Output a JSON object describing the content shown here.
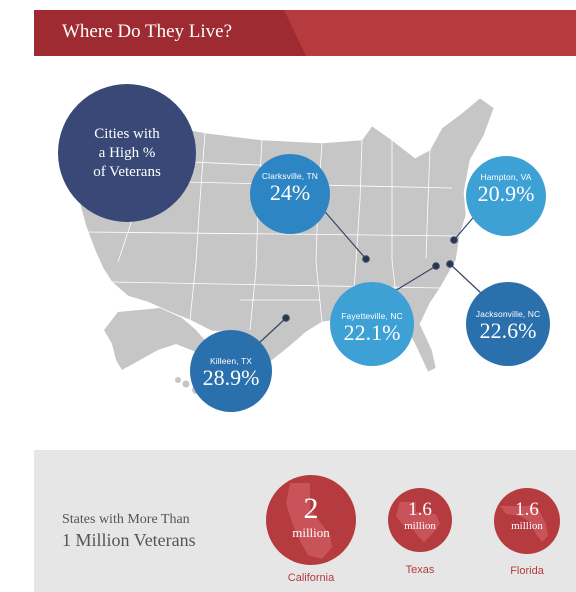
{
  "header": {
    "title": "Where Do They Live?"
  },
  "map": {
    "cities_label": {
      "line1": "Cities with",
      "line2": "a High %",
      "line3": "of Veterans"
    },
    "cities": [
      {
        "name": "Clarksville, TN",
        "percent": "24%"
      },
      {
        "name": "Hampton, VA",
        "percent": "20.9%"
      },
      {
        "name": "Fayetteville, NC",
        "percent": "22.1%"
      },
      {
        "name": "Jacksonville, NC",
        "percent": "22.6%"
      },
      {
        "name": "Killeen, TX",
        "percent": "28.9%"
      }
    ]
  },
  "states_section": {
    "label_line1": "States with More Than",
    "label_line2": "1 Million Veterans",
    "states": [
      {
        "name": "California",
        "value": "2",
        "unit": "million"
      },
      {
        "name": "Texas",
        "value": "1.6",
        "unit": "million"
      },
      {
        "name": "Florida",
        "value": "1.6",
        "unit": "million"
      }
    ]
  },
  "colors": {
    "header_dark": "#9e2b32",
    "header_light": "#b53b3f",
    "navy": "#394876",
    "blue_dark": "#2a70ad",
    "blue_mid": "#2d86c3",
    "blue_light": "#3ea1d6",
    "map_gray": "#c6c6c6",
    "state_red": "#b53b3f"
  }
}
